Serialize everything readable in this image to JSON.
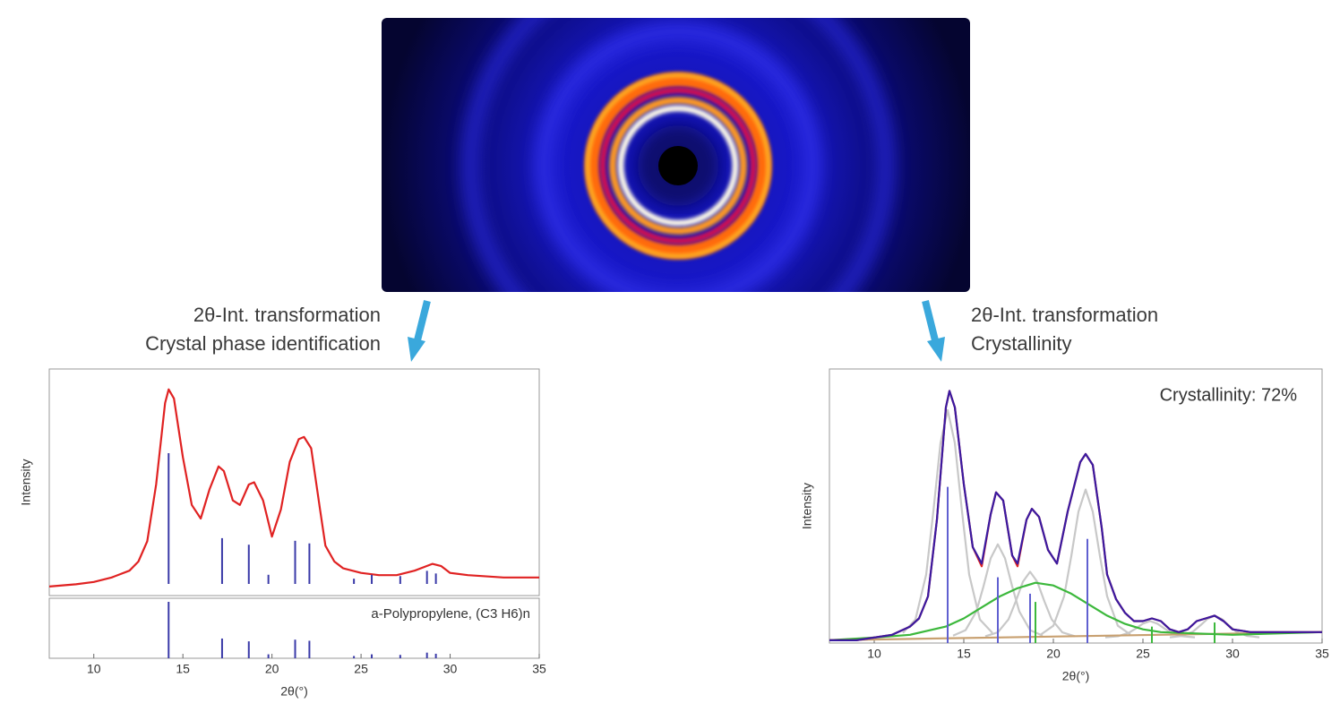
{
  "steps": [
    {
      "lines": [
        "2θ-Int. transformation",
        "Crystal phase identification"
      ]
    },
    {
      "lines": [
        "2θ-Int. transformation",
        "Crystallinity"
      ]
    }
  ],
  "chart_data": [
    {
      "type": "line",
      "xlabel": "2θ(°)",
      "ylabel": "Intensity",
      "xlim": [
        7.5,
        35
      ],
      "xticks": [
        10,
        15,
        20,
        25,
        30,
        35
      ],
      "ylim": [
        0,
        100
      ],
      "series": [
        {
          "color": "#e02222",
          "x": [
            7.5,
            9,
            10,
            11,
            12,
            12.5,
            13,
            13.5,
            14,
            14.2,
            14.5,
            15,
            15.5,
            16,
            16.5,
            17,
            17.3,
            17.8,
            18.2,
            18.7,
            19,
            19.5,
            20,
            20.5,
            21,
            21.5,
            21.8,
            22.2,
            22.7,
            23,
            23.5,
            24,
            25,
            26,
            27,
            28,
            29,
            29.5,
            30,
            31,
            33,
            35
          ],
          "values": [
            4,
            5,
            6,
            8,
            11,
            15,
            24,
            49,
            85,
            91,
            87,
            61,
            40,
            34,
            47,
            57,
            55,
            42,
            40,
            49,
            50,
            42,
            26,
            38,
            59,
            69,
            70,
            65,
            38,
            22,
            15,
            12,
            10,
            9,
            9,
            11,
            14,
            13,
            10,
            9,
            8,
            8
          ]
        }
      ],
      "sticks": [
        {
          "name": "a-Polypropylene, (C3 H6)n",
          "color": "#3a3aa8",
          "x": [
            14.2,
            17.2,
            18.7,
            19.8,
            21.3,
            22.1,
            24.6,
            25.6,
            27.2,
            28.7,
            29.2
          ],
          "values": [
            100,
            35,
            30,
            7,
            33,
            31,
            4,
            7,
            6,
            10,
            8
          ]
        }
      ]
    },
    {
      "type": "line",
      "xlabel": "2θ(°)",
      "ylabel": "Intensity",
      "annotation": "Crystallinity: 72%",
      "xlim": [
        7.5,
        35
      ],
      "xticks": [
        10,
        15,
        20,
        25,
        30,
        35
      ],
      "ylim": [
        0,
        100
      ],
      "series": [
        {
          "color": "#c8c8c8",
          "x": [
            11.6,
            12.3,
            12.9,
            13.3,
            13.7,
            14.1,
            14.5,
            14.9,
            15.3,
            15.9,
            16.6
          ],
          "values": [
            3.7,
            8.6,
            25,
            48,
            73,
            85,
            73,
            48,
            25,
            8.6,
            3.7
          ]
        },
        {
          "color": "#c8c8c8",
          "x": [
            14.4,
            15.1,
            15.7,
            16.1,
            16.5,
            16.9,
            17.3,
            17.7,
            18.1,
            18.7,
            19.4
          ],
          "values": [
            2.7,
            4.7,
            11.5,
            20.7,
            30.9,
            36,
            30.9,
            20.7,
            11.5,
            4.7,
            2.7
          ]
        },
        {
          "color": "#c8c8c8",
          "x": [
            16.2,
            16.9,
            17.5,
            17.9,
            18.3,
            18.7,
            19.1,
            19.5,
            19.9,
            20.5,
            21.2
          ],
          "values": [
            2.5,
            3.9,
            8.7,
            15.2,
            22.4,
            26,
            22.4,
            15.2,
            8.7,
            3.9,
            2.5
          ]
        },
        {
          "color": "#c8c8c8",
          "x": [
            19.3,
            20.0,
            20.6,
            21.0,
            21.4,
            21.8,
            22.2,
            22.6,
            23.0,
            23.6,
            24.3
          ],
          "values": [
            3.1,
            6.3,
            17.1,
            31.7,
            47.9,
            56,
            47.9,
            31.7,
            17.1,
            6.3,
            3.1
          ]
        },
        {
          "color": "#c8c8c8",
          "x": [
            22.9,
            23.6,
            24.2,
            24.6,
            25.0,
            25.4,
            25.8,
            26.2,
            26.6,
            27.2,
            27.9
          ],
          "values": [
            2.1,
            2.5,
            3.7,
            5.3,
            7.1,
            8,
            7.1,
            5.3,
            3.7,
            2.5,
            2.1
          ]
        },
        {
          "color": "#c8c8c8",
          "x": [
            26.5,
            27.2,
            27.8,
            28.2,
            28.6,
            29,
            29.4,
            29.8,
            30.2,
            30.8,
            31.5
          ],
          "values": [
            2.1,
            2.6,
            4.2,
            6.4,
            8.8,
            10,
            8.8,
            6.4,
            4.2,
            2.6,
            2.1
          ]
        },
        {
          "color": "#c8a070",
          "x": [
            7.5,
            35
          ],
          "values": [
            1,
            4
          ]
        },
        {
          "color": "#3cb83c",
          "x": [
            7.5,
            10,
            12,
            14,
            15,
            16,
            17,
            18,
            19,
            20,
            21,
            22,
            23,
            24,
            25,
            26,
            28,
            30,
            35
          ],
          "values": [
            1,
            2,
            3,
            6,
            9,
            13,
            17,
            20,
            22,
            21,
            18,
            14,
            10,
            7,
            5,
            4,
            3.5,
            3,
            4
          ]
        },
        {
          "color": "#e02222",
          "x": [
            7.5,
            9,
            10,
            11,
            12,
            12.5,
            13,
            13.5,
            14,
            14.2,
            14.5,
            15,
            15.5,
            16,
            16.5,
            16.8,
            17.2,
            17.7,
            18,
            18.5,
            18.8,
            19.2,
            19.7,
            20.2,
            20.8,
            21.5,
            21.8,
            22.2,
            22.7,
            23,
            23.5,
            24,
            24.5,
            25,
            25.5,
            26,
            26.5,
            27,
            27.5,
            28,
            28.5,
            29,
            29.5,
            30,
            31,
            33,
            35
          ],
          "values": [
            1,
            1,
            2,
            3,
            6,
            9,
            17,
            45,
            86,
            92,
            86,
            58,
            35,
            28,
            47,
            55,
            52,
            32,
            28,
            45,
            49,
            46,
            34,
            29,
            48,
            66,
            69,
            65,
            42,
            25,
            16,
            11,
            8,
            8,
            9,
            8,
            5,
            4,
            5,
            8,
            9,
            10,
            8,
            5,
            4,
            4,
            4
          ]
        },
        {
          "color": "#3a1aa0",
          "x": [
            7.5,
            9,
            10,
            11,
            12,
            12.5,
            13,
            13.5,
            14,
            14.2,
            14.5,
            15,
            15.5,
            16,
            16.5,
            16.8,
            17.2,
            17.7,
            18,
            18.5,
            18.8,
            19.2,
            19.7,
            20.2,
            20.8,
            21.5,
            21.8,
            22.2,
            22.7,
            23,
            23.5,
            24,
            24.5,
            25,
            25.5,
            26,
            26.5,
            27,
            27.5,
            28,
            28.5,
            29,
            29.5,
            30,
            31,
            33,
            35
          ],
          "values": [
            1,
            1,
            2,
            3,
            6,
            9,
            17,
            45,
            86,
            92,
            86,
            58,
            35,
            29,
            47,
            55,
            52,
            32,
            29,
            45,
            49,
            46,
            34,
            29,
            48,
            66,
            69,
            65,
            42,
            25,
            16,
            11,
            8,
            8,
            9,
            8,
            5,
            4,
            5,
            8,
            9,
            10,
            8,
            5,
            4,
            4,
            4
          ]
        }
      ],
      "sticks": [
        {
          "color": "#6060d0",
          "x": [
            14.1,
            16.9,
            18.7,
            21.9
          ],
          "values": [
            57,
            24,
            18,
            38
          ]
        },
        {
          "color": "#3cb83c",
          "x": [
            19.0,
            25.5,
            29.0
          ],
          "values": [
            15,
            6,
            7.5
          ]
        }
      ]
    }
  ]
}
